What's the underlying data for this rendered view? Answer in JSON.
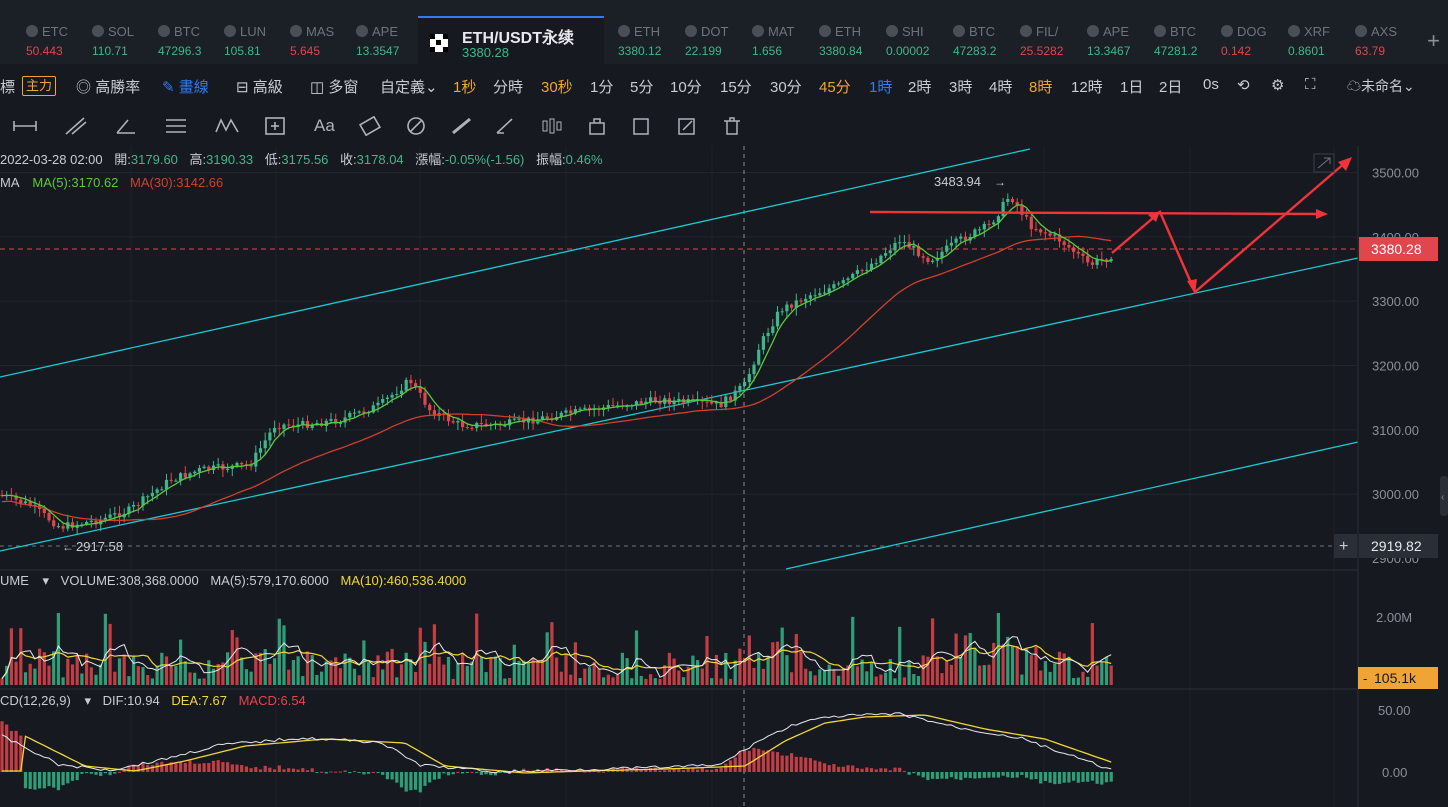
{
  "tabs": [
    {
      "name": "ETC",
      "price": "50.443",
      "dir": "dn"
    },
    {
      "name": "SOL",
      "price": "110.71",
      "dir": "up"
    },
    {
      "name": "BTC",
      "price": "47296.3",
      "dir": "up"
    },
    {
      "name": "LUN",
      "price": "105.81",
      "dir": "up"
    },
    {
      "name": "MAS",
      "price": "5.645",
      "dir": "dn"
    },
    {
      "name": "APE",
      "price": "13.3547",
      "dir": "up"
    }
  ],
  "active_tab": {
    "name": "ETH/USDT永续",
    "price": "3380.28"
  },
  "tabs_right": [
    {
      "name": "ETH",
      "price": "3380.12",
      "dir": "up"
    },
    {
      "name": "DOT",
      "price": "22.199",
      "dir": "up"
    },
    {
      "name": "MAT",
      "price": "1.656",
      "dir": "up"
    },
    {
      "name": "ETH",
      "price": "3380.84",
      "dir": "up"
    },
    {
      "name": "SHI",
      "price": "0.00002",
      "dir": "up"
    },
    {
      "name": "BTC",
      "price": "47283.2",
      "dir": "up"
    },
    {
      "name": "FIL/",
      "price": "25.5282",
      "dir": "dn"
    },
    {
      "name": "APE",
      "price": "13.3467",
      "dir": "up"
    },
    {
      "name": "BTC",
      "price": "47281.2",
      "dir": "up"
    },
    {
      "name": "DOG",
      "price": "0.142",
      "dir": "dn"
    },
    {
      "name": "XRF",
      "price": "0.8601",
      "dir": "up"
    },
    {
      "name": "AXS",
      "price": "63.79",
      "dir": "dn"
    }
  ],
  "toolbar": {
    "indicators_label": "標",
    "main_badge": "主力",
    "win_rate": "高勝率",
    "draw": "畫線",
    "advanced": "高級",
    "multi_window": "多窗",
    "custom": "自定義",
    "intervals": [
      "1秒",
      "分時",
      "30秒",
      "1分",
      "5分",
      "10分",
      "15分",
      "30分",
      "45分",
      "1時",
      "2時",
      "3時",
      "4時",
      "8時",
      "12時",
      "1日",
      "2日",
      "0s"
    ],
    "highlight_orange": [
      "1秒",
      "30秒",
      "45分",
      "8時"
    ],
    "active_interval": "1時",
    "unnamed": "未命名"
  },
  "ohlc": {
    "date": "2022-03-28 02:00",
    "open_label": "開:",
    "open": "3179.60",
    "high_label": "高:",
    "high": "3190.33",
    "low_label": "低:",
    "low": "3175.56",
    "close_label": "收:",
    "close": "3178.04",
    "change_label": "漲幅:",
    "change": "-0.05%(-1.56)",
    "amp_label": "振幅:",
    "amp": "0.46%"
  },
  "ma": {
    "label": "MA",
    "ma5": "MA(5):3170.62",
    "ma30": "MA(30):3142.66"
  },
  "price_axis": {
    "ticks": [
      "3500.00",
      "3400.00",
      "3300.00",
      "3200.00",
      "3100.00",
      "3000.00"
    ],
    "current": "3380.28",
    "crosshair": "2919.82",
    "cut_tick": "2900.00"
  },
  "annotations": {
    "high": "3483.94",
    "low": "2917.58"
  },
  "volume": {
    "label": "UME",
    "value": "VOLUME:308,368.0000",
    "ma5": "MA(5):579,170.6000",
    "ma10": "MA(10):460,536.4000",
    "axis_tick": "2.00M",
    "current": "105.1k"
  },
  "macd": {
    "label": "CD(12,26,9)",
    "dif": "DIF:10.94",
    "dea": "DEA:7.67",
    "macd": "MACD:6.54",
    "ticks": [
      "50.00",
      "0.00"
    ]
  },
  "colors": {
    "up": "#3fb68b",
    "down": "#e0464c",
    "ma5": "#59c93c",
    "ma30": "#d0402c",
    "channel": "#1fc7d4",
    "arrows": "#f0343a",
    "accent": "#2f7df6",
    "yellow": "#f0d63a"
  }
}
